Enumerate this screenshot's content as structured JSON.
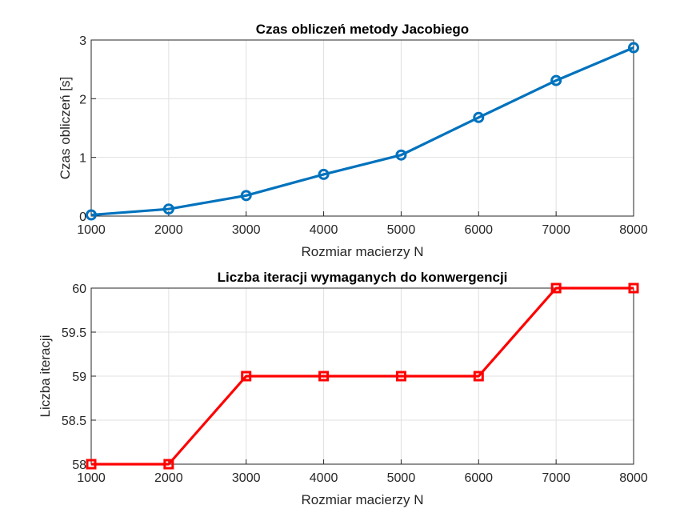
{
  "chart_data": [
    {
      "type": "line",
      "title": "Czas obliczeń metody Jacobiego",
      "xlabel": "Rozmiar macierzy N",
      "ylabel": "Czas obliczeń [s]",
      "x": [
        1000,
        2000,
        3000,
        4000,
        5000,
        6000,
        7000,
        8000
      ],
      "series": [
        {
          "values": [
            0.02,
            0.12,
            0.35,
            0.71,
            1.04,
            1.68,
            2.31,
            2.87
          ],
          "color": "#0072BD",
          "marker": "circle"
        }
      ],
      "xlim": [
        1000,
        8000
      ],
      "ylim": [
        0,
        3
      ],
      "xticks": [
        "1000",
        "2000",
        "3000",
        "4000",
        "5000",
        "6000",
        "7000",
        "8000"
      ],
      "yticks": [
        "0",
        "1",
        "2",
        "3"
      ],
      "grid": true
    },
    {
      "type": "line",
      "title": "Liczba iteracji wymaganych do konwergencji",
      "xlabel": "Rozmiar macierzy N",
      "ylabel": "Liczba iteracji",
      "x": [
        1000,
        2000,
        3000,
        4000,
        5000,
        6000,
        7000,
        8000
      ],
      "series": [
        {
          "values": [
            58,
            58,
            59,
            59,
            59,
            59,
            60,
            60
          ],
          "color": "#FF0000",
          "marker": "square"
        }
      ],
      "xlim": [
        1000,
        8000
      ],
      "ylim": [
        58,
        60
      ],
      "xticks": [
        "1000",
        "2000",
        "3000",
        "4000",
        "5000",
        "6000",
        "7000",
        "8000"
      ],
      "yticks": [
        "58",
        "58.5",
        "59",
        "59.5",
        "60"
      ],
      "grid": true
    }
  ]
}
